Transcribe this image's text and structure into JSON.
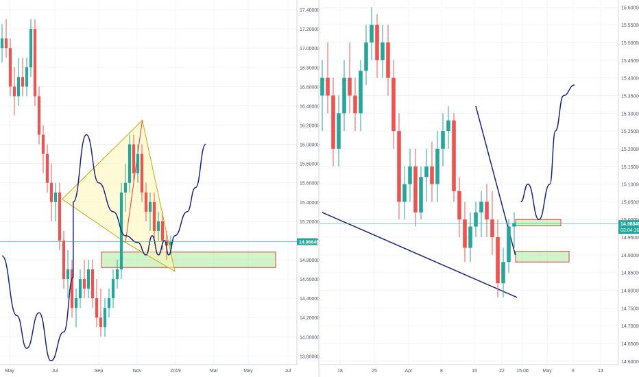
{
  "chart_data": [
    {
      "type": "candlestick",
      "title": "",
      "x_tick_labels": [
        "May",
        "Jul",
        "Sep",
        "Nov",
        "2019",
        "Mar",
        "May",
        "Jul"
      ],
      "y_tick_labels": [
        "13.80000",
        "14.00000",
        "14.20000",
        "14.40000",
        "14.60000",
        "14.80000",
        "15.00000",
        "15.20000",
        "15.40000",
        "15.60000",
        "15.80000",
        "16.00000",
        "16.20000",
        "16.40000",
        "16.60000",
        "16.80000",
        "17.00000",
        "17.20000",
        "17.40000"
      ],
      "ylim": [
        13.71,
        17.5
      ],
      "current_price": "14.98848",
      "current_price_value": 14.98848,
      "colors": {
        "up": "#26a69a",
        "down": "#ef5350",
        "price_line": "#26a69a",
        "curve": "#1a237e"
      },
      "candles": [
        [
          17.0,
          17.25,
          16.85,
          17.1
        ],
        [
          17.1,
          17.3,
          16.9,
          17.0
        ],
        [
          17.0,
          17.1,
          16.5,
          16.6
        ],
        [
          16.6,
          16.8,
          16.3,
          16.5
        ],
        [
          16.5,
          16.9,
          16.4,
          16.7
        ],
        [
          16.7,
          16.9,
          16.5,
          16.6
        ],
        [
          16.6,
          16.9,
          16.5,
          16.8
        ],
        [
          16.8,
          17.3,
          16.7,
          17.2
        ],
        [
          17.2,
          17.3,
          16.4,
          16.5
        ],
        [
          16.5,
          16.6,
          16.0,
          16.1
        ],
        [
          16.1,
          16.2,
          15.7,
          15.9
        ],
        [
          15.9,
          16.0,
          15.5,
          15.6
        ],
        [
          15.6,
          15.8,
          15.2,
          15.4
        ],
        [
          15.4,
          15.6,
          15.2,
          15.5
        ],
        [
          15.5,
          15.6,
          14.9,
          15.0
        ],
        [
          15.0,
          15.1,
          14.5,
          14.6
        ],
        [
          14.6,
          14.9,
          14.4,
          14.7
        ],
        [
          14.7,
          14.8,
          14.2,
          14.3
        ],
        [
          14.3,
          14.5,
          14.1,
          14.4
        ],
        [
          14.4,
          14.7,
          14.3,
          14.6
        ],
        [
          14.6,
          14.8,
          14.4,
          14.5
        ],
        [
          14.5,
          14.8,
          14.4,
          14.7
        ],
        [
          14.7,
          14.8,
          14.3,
          14.4
        ],
        [
          14.4,
          14.6,
          14.1,
          14.2
        ],
        [
          14.2,
          14.5,
          14.0,
          14.1
        ],
        [
          14.1,
          14.4,
          14.0,
          14.3
        ],
        [
          14.3,
          14.5,
          14.2,
          14.4
        ],
        [
          14.4,
          14.7,
          14.3,
          14.6
        ],
        [
          14.6,
          14.8,
          14.5,
          14.7
        ],
        [
          14.7,
          15.6,
          14.6,
          15.5
        ],
        [
          15.5,
          15.8,
          15.3,
          15.6
        ],
        [
          15.6,
          16.1,
          15.5,
          16.0
        ],
        [
          16.0,
          16.1,
          15.6,
          15.7
        ],
        [
          15.7,
          16.0,
          15.6,
          15.9
        ],
        [
          15.9,
          16.0,
          15.4,
          15.5
        ],
        [
          15.5,
          15.6,
          15.2,
          15.3
        ],
        [
          15.3,
          15.5,
          15.1,
          15.4
        ],
        [
          15.4,
          15.5,
          15.0,
          15.1
        ],
        [
          15.1,
          15.3,
          15.0,
          15.2
        ],
        [
          15.2,
          15.3,
          14.9,
          15.0
        ],
        [
          15.0,
          15.1,
          14.8,
          14.95
        ],
        [
          14.95,
          15.05,
          14.85,
          14.99
        ]
      ],
      "price_curve": [
        [
          0.0,
          14.84
        ],
        [
          3.6,
          14.22
        ],
        [
          6.0,
          13.88
        ],
        [
          9.0,
          14.25
        ],
        [
          11.9,
          13.75
        ],
        [
          15.0,
          14.05
        ],
        [
          17.3,
          14.62
        ],
        [
          17.3,
          15.4
        ],
        [
          20.5,
          16.1
        ],
        [
          23.5,
          15.6
        ],
        [
          27.0,
          15.3
        ],
        [
          30.0,
          15.05
        ],
        [
          33.0,
          14.98
        ],
        [
          35.0,
          14.85
        ],
        [
          36.5,
          15.05
        ],
        [
          38.0,
          14.85
        ],
        [
          39.5,
          15.0
        ],
        [
          40.5,
          14.85
        ],
        [
          42.0,
          15.05
        ],
        [
          45.0,
          15.3
        ],
        [
          47.0,
          15.55
        ],
        [
          49.5,
          16.0
        ]
      ],
      "wedge": [
        [
          14.6,
          15.43
        ],
        [
          34.1,
          16.25
        ],
        [
          42.0,
          14.68
        ],
        [
          30.0,
          14.98
        ]
      ],
      "support_zone": [
        14.72,
        14.88
      ]
    },
    {
      "type": "candlestick",
      "title": "",
      "x_tick_labels": [
        "18",
        "25",
        "Apr",
        "8",
        "15",
        "22",
        "15:00",
        "May",
        "6",
        "13"
      ],
      "y_tick_labels": [
        "14.60000",
        "14.65000",
        "14.70000",
        "14.75000",
        "14.80000",
        "14.85000",
        "14.90000",
        "14.95000",
        "15.00000",
        "15.05000",
        "15.10000",
        "15.15000",
        "15.20000",
        "15.25000",
        "15.30000",
        "15.35000",
        "15.40000",
        "15.45000",
        "15.50000",
        "15.55000",
        "15.60000"
      ],
      "ylim": [
        14.59,
        15.62
      ],
      "current_price": "14.98848",
      "countdown": "03:04:16",
      "current_price_value": 14.98848,
      "colors": {
        "up": "#26a69a",
        "down": "#ef5350",
        "price_line": "#26a69a",
        "curve": "#1a237e"
      },
      "candles": [
        [
          15.35,
          15.45,
          15.25,
          15.4
        ],
        [
          15.4,
          15.5,
          15.3,
          15.35
        ],
        [
          15.35,
          15.4,
          15.15,
          15.2
        ],
        [
          15.2,
          15.35,
          15.15,
          15.3
        ],
        [
          15.3,
          15.45,
          15.25,
          15.4
        ],
        [
          15.4,
          15.5,
          15.3,
          15.35
        ],
        [
          15.35,
          15.4,
          15.25,
          15.3
        ],
        [
          15.3,
          15.45,
          15.25,
          15.42
        ],
        [
          15.42,
          15.55,
          15.38,
          15.5
        ],
        [
          15.5,
          15.6,
          15.45,
          15.55
        ],
        [
          15.55,
          15.58,
          15.4,
          15.45
        ],
        [
          15.45,
          15.55,
          15.4,
          15.5
        ],
        [
          15.5,
          15.55,
          15.35,
          15.4
        ],
        [
          15.4,
          15.45,
          15.2,
          15.25
        ],
        [
          15.25,
          15.3,
          15.0,
          15.05
        ],
        [
          15.05,
          15.15,
          15.0,
          15.1
        ],
        [
          15.1,
          15.2,
          15.05,
          15.15
        ],
        [
          15.15,
          15.2,
          14.98,
          15.02
        ],
        [
          15.02,
          15.15,
          15.0,
          15.12
        ],
        [
          15.12,
          15.2,
          15.05,
          15.15
        ],
        [
          15.15,
          15.22,
          15.05,
          15.1
        ],
        [
          15.1,
          15.25,
          15.05,
          15.2
        ],
        [
          15.2,
          15.3,
          15.15,
          15.25
        ],
        [
          15.25,
          15.32,
          15.2,
          15.28
        ],
        [
          15.28,
          15.3,
          15.05,
          15.08
        ],
        [
          15.08,
          15.12,
          14.95,
          15.0
        ],
        [
          15.0,
          15.05,
          14.88,
          14.92
        ],
        [
          14.92,
          15.02,
          14.88,
          14.98
        ],
        [
          14.98,
          15.05,
          14.95,
          15.02
        ],
        [
          15.02,
          15.08,
          14.95,
          15.05
        ],
        [
          15.05,
          15.1,
          14.95,
          15.0
        ],
        [
          15.0,
          15.08,
          14.9,
          14.95
        ],
        [
          14.95,
          15.0,
          14.78,
          14.82
        ],
        [
          14.82,
          14.92,
          14.78,
          14.88
        ],
        [
          14.88,
          15.0,
          14.85,
          14.98
        ],
        [
          14.98,
          15.02,
          14.92,
          14.99
        ]
      ],
      "price_curve": [
        [
          36.2,
          15.05
        ],
        [
          37.5,
          15.1
        ],
        [
          39.5,
          15.0
        ],
        [
          41.5,
          15.1
        ],
        [
          42.5,
          15.25
        ],
        [
          44.0,
          15.35
        ],
        [
          46.0,
          15.38
        ]
      ],
      "channel_upper": [
        [
          28.0,
          15.32
        ],
        [
          35.2,
          14.9
        ]
      ],
      "channel_lower": [
        [
          0.0,
          15.02
        ],
        [
          35.5,
          14.78
        ]
      ],
      "resistance_zone": [
        14.982,
        15.0
      ],
      "support_zone": [
        14.88,
        14.91
      ]
    }
  ]
}
